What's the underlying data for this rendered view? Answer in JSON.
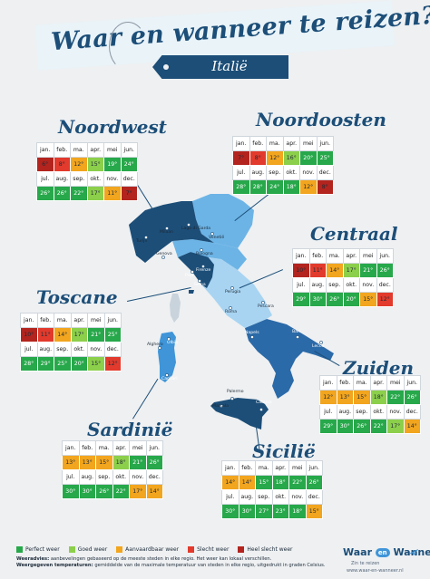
{
  "title": "Waar en wanneer te reizen?",
  "country": "Italië",
  "header_months_1": [
    "jan.",
    "feb.",
    "ma.",
    "apr.",
    "mei",
    "jun."
  ],
  "header_months_2": [
    "jul.",
    "aug.",
    "sep.",
    "okt.",
    "nov.",
    "dec."
  ],
  "colors": {
    "perfect": "#27a84a",
    "good": "#8ccf4b",
    "acceptable": "#f2a51e",
    "bad": "#e23a2c",
    "very_bad": "#b3241e",
    "navy": "#1c4e78"
  },
  "regions": {
    "noordwest": {
      "name": "Noordwest",
      "row1": [
        [
          "6°",
          "vb"
        ],
        [
          "8°",
          "b"
        ],
        [
          "12°",
          "a"
        ],
        [
          "15°",
          "g"
        ],
        [
          "19°",
          "p"
        ],
        [
          "24°",
          "p"
        ]
      ],
      "row2": [
        [
          "26°",
          "p"
        ],
        [
          "26°",
          "p"
        ],
        [
          "22°",
          "p"
        ],
        [
          "17°",
          "g"
        ],
        [
          "11°",
          "a"
        ],
        [
          "7°",
          "vb"
        ]
      ]
    },
    "noordoosten": {
      "name": "Noordoosten",
      "row1": [
        [
          "7°",
          "vb"
        ],
        [
          "8°",
          "b"
        ],
        [
          "12°",
          "a"
        ],
        [
          "16°",
          "g"
        ],
        [
          "20°",
          "p"
        ],
        [
          "25°",
          "p"
        ]
      ],
      "row2": [
        [
          "28°",
          "p"
        ],
        [
          "28°",
          "p"
        ],
        [
          "24°",
          "p"
        ],
        [
          "18°",
          "p"
        ],
        [
          "12°",
          "a"
        ],
        [
          "8°",
          "vb"
        ]
      ]
    },
    "centraal": {
      "name": "Centraal",
      "row1": [
        [
          "10°",
          "vb"
        ],
        [
          "11°",
          "b"
        ],
        [
          "14°",
          "a"
        ],
        [
          "17°",
          "g"
        ],
        [
          "21°",
          "p"
        ],
        [
          "26°",
          "p"
        ]
      ],
      "row2": [
        [
          "29°",
          "p"
        ],
        [
          "30°",
          "p"
        ],
        [
          "26°",
          "p"
        ],
        [
          "20°",
          "p"
        ],
        [
          "15°",
          "a"
        ],
        [
          "12°",
          "b"
        ]
      ]
    },
    "toscane": {
      "name": "Toscane",
      "row1": [
        [
          "10°",
          "vb"
        ],
        [
          "11°",
          "b"
        ],
        [
          "14°",
          "a"
        ],
        [
          "17°",
          "g"
        ],
        [
          "21°",
          "p"
        ],
        [
          "25°",
          "p"
        ]
      ],
      "row2": [
        [
          "28°",
          "p"
        ],
        [
          "29°",
          "p"
        ],
        [
          "25°",
          "p"
        ],
        [
          "20°",
          "p"
        ],
        [
          "15°",
          "g"
        ],
        [
          "12°",
          "b"
        ]
      ]
    },
    "zuiden": {
      "name": "Zuiden",
      "row1": [
        [
          "12°",
          "a"
        ],
        [
          "13°",
          "a"
        ],
        [
          "15°",
          "a"
        ],
        [
          "18°",
          "g"
        ],
        [
          "22°",
          "p"
        ],
        [
          "26°",
          "p"
        ]
      ],
      "row2": [
        [
          "29°",
          "p"
        ],
        [
          "30°",
          "p"
        ],
        [
          "26°",
          "p"
        ],
        [
          "22°",
          "p"
        ],
        [
          "17°",
          "g"
        ],
        [
          "14°",
          "a"
        ]
      ]
    },
    "sardinie": {
      "name": "Sardinië",
      "row1": [
        [
          "13°",
          "a"
        ],
        [
          "13°",
          "a"
        ],
        [
          "15°",
          "a"
        ],
        [
          "18°",
          "g"
        ],
        [
          "21°",
          "p"
        ],
        [
          "26°",
          "p"
        ]
      ],
      "row2": [
        [
          "30°",
          "p"
        ],
        [
          "30°",
          "p"
        ],
        [
          "26°",
          "p"
        ],
        [
          "22°",
          "p"
        ],
        [
          "17°",
          "a"
        ],
        [
          "14°",
          "a"
        ]
      ]
    },
    "sicilie": {
      "name": "Sicilië",
      "row1": [
        [
          "14°",
          "a"
        ],
        [
          "14°",
          "a"
        ],
        [
          "15°",
          "p"
        ],
        [
          "18°",
          "p"
        ],
        [
          "22°",
          "p"
        ],
        [
          "26°",
          "p"
        ]
      ],
      "row2": [
        [
          "30°",
          "p"
        ],
        [
          "30°",
          "p"
        ],
        [
          "27°",
          "p"
        ],
        [
          "23°",
          "p"
        ],
        [
          "18°",
          "p"
        ],
        [
          "15°",
          "a"
        ]
      ]
    }
  },
  "cities": {
    "turijn": "Turijn",
    "milaan": "Milaan",
    "lago": "Lago di Garda",
    "venetie": "Venetië",
    "genova": "Genova",
    "bologna": "Bologna",
    "firenze": "Firenze",
    "pisa": "Pisa",
    "siena": "Siena",
    "perugia": "Perugia",
    "pescara": "Pescara",
    "roma": "Roma",
    "napels": "Napels",
    "bari": "Bari",
    "lecce": "Lecce",
    "alghero": "Alghero",
    "olbia": "Olbia",
    "cagliari": "Cagliari",
    "palermo": "Palermo",
    "catania": "Catania",
    "marsala": "Marsala"
  },
  "legend": [
    "Perfect weer",
    "Goed weer",
    "Aanvaardbaar weer",
    "Slecht weer",
    "Heel slecht weer"
  ],
  "notes": {
    "advice_label": "Weeradvies:",
    "advice_text": "aanbevelingen gebaseerd op de meeste steden in elke regio. Het weer kan lokaal verschillen.",
    "temps_label": "Weergegeven temperaturen:",
    "temps_text": "gemiddelde van de maximale temperatuur van steden in elke regio, uitgedrukt in graden Celsius."
  },
  "brand": {
    "name_left": "Waar",
    "name_mid": "en",
    "name_right": "Wanneer",
    "sub": "Zin te reizen",
    "url": "www.waar-en-wanneer.nl"
  }
}
